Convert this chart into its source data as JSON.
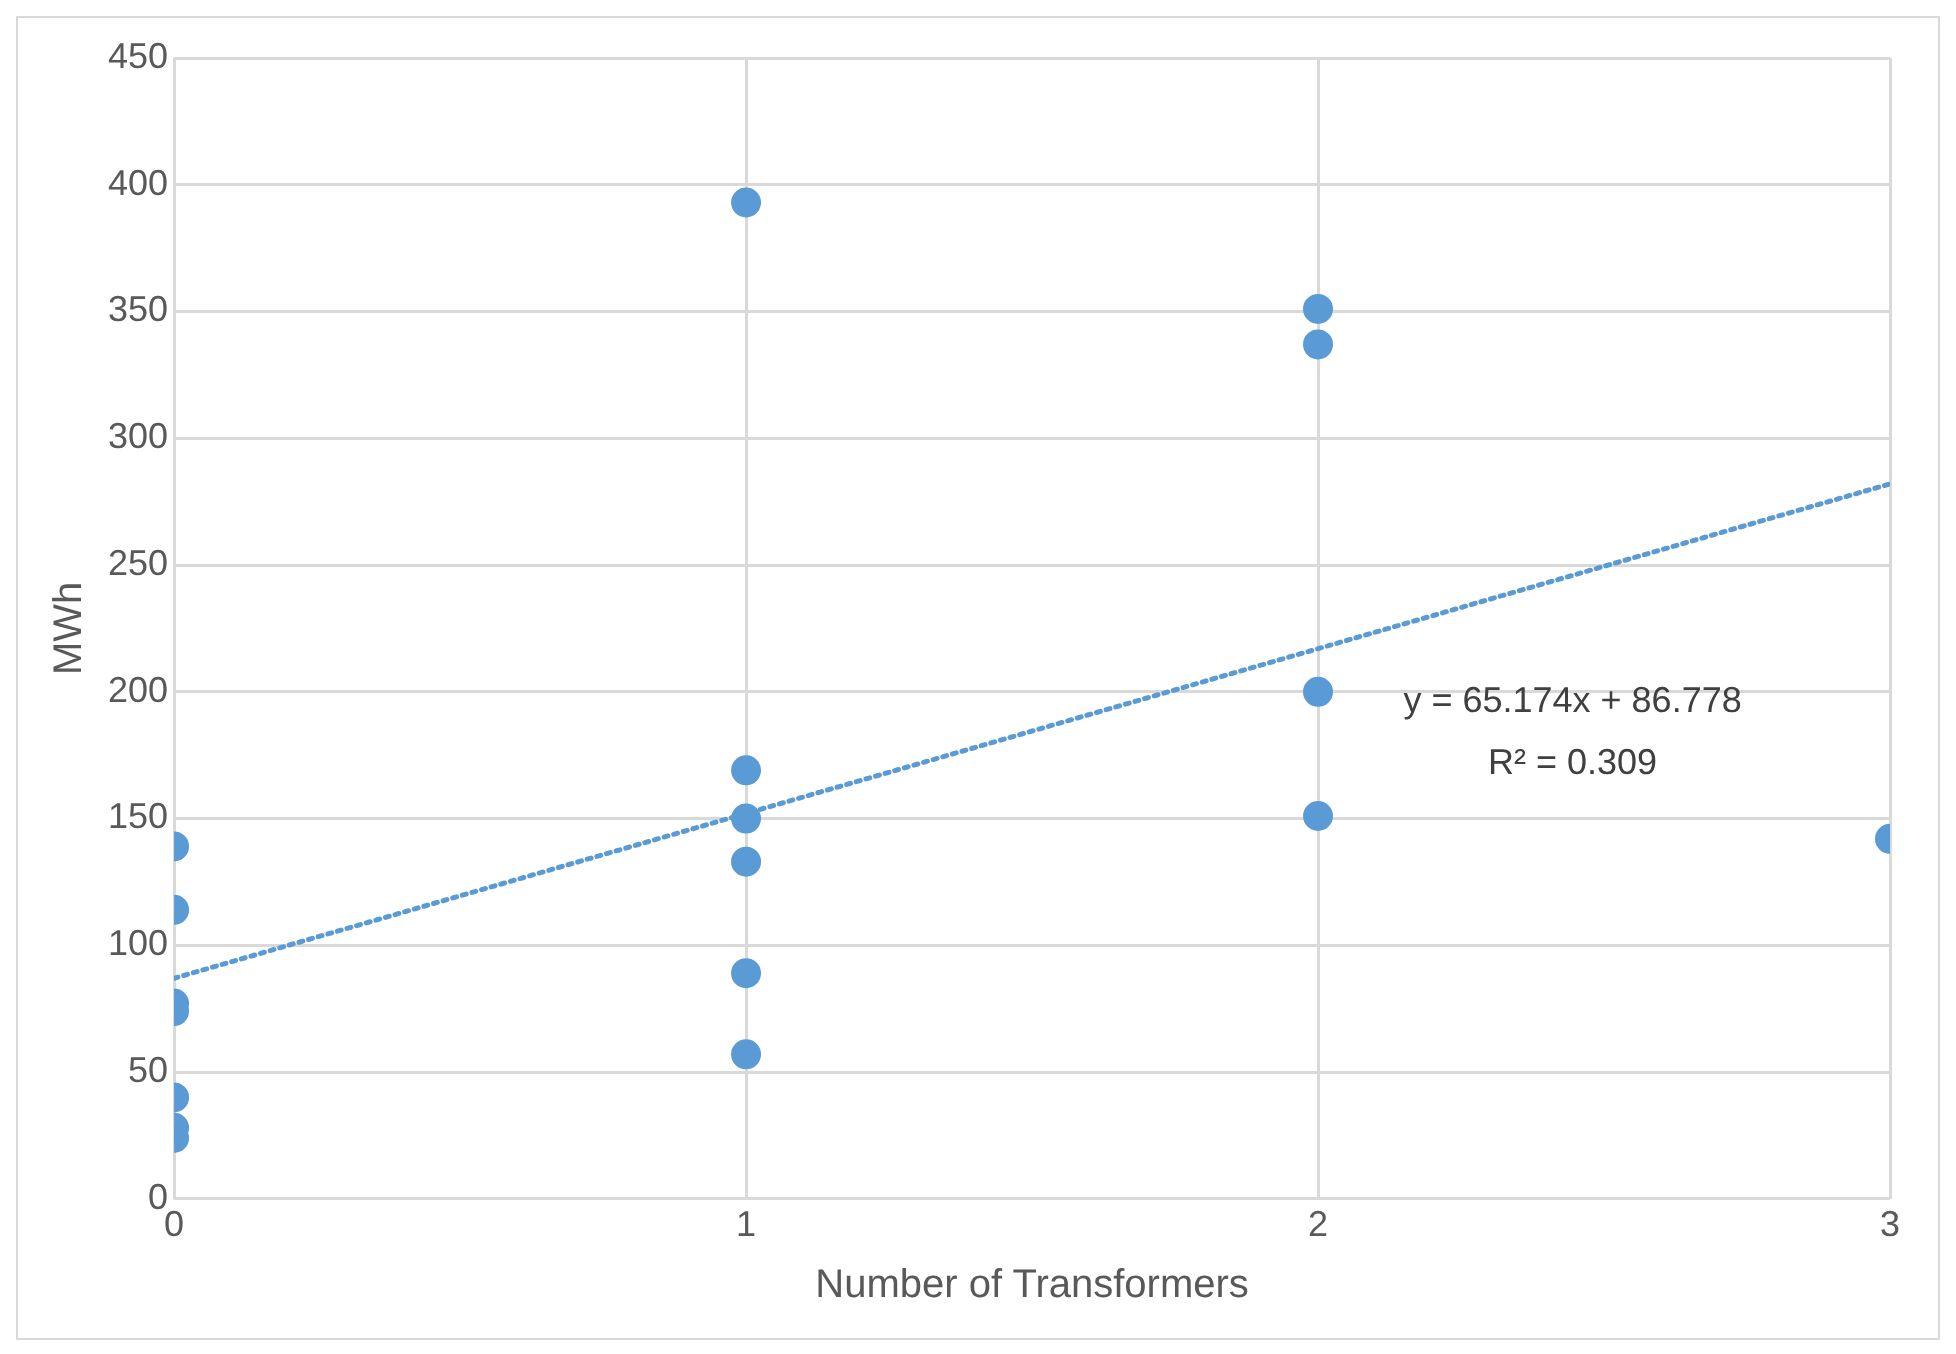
{
  "chart_data": {
    "type": "scatter",
    "xlabel": "Number of Transformers",
    "ylabel": "MWh",
    "xlim": [
      0,
      3
    ],
    "xticks": [
      0,
      1,
      2,
      3
    ],
    "ylim": [
      0,
      450
    ],
    "yticks": [
      0,
      50,
      100,
      150,
      200,
      250,
      300,
      350,
      400,
      450
    ],
    "grid": true,
    "legend": false,
    "marker": "circle",
    "series": [
      {
        "type": "scatter",
        "color": "#5b9bd5",
        "x": [
          0,
          0,
          0,
          0,
          0,
          0,
          0,
          1,
          1,
          1,
          1,
          1,
          1,
          2,
          2,
          2,
          2,
          3
        ],
        "values": [
          139,
          114,
          77,
          74,
          40,
          28,
          24,
          393,
          169,
          150,
          133,
          89,
          57,
          351,
          337,
          200,
          151,
          142
        ]
      },
      {
        "type": "line",
        "color": "#5b9bd5",
        "line_style": "dotted",
        "marker": "none",
        "x": [
          0,
          3
        ],
        "values": [
          87,
          282
        ]
      }
    ],
    "annotations": [
      "y = 65.174x + 86.778",
      "R² = 0.309"
    ]
  }
}
